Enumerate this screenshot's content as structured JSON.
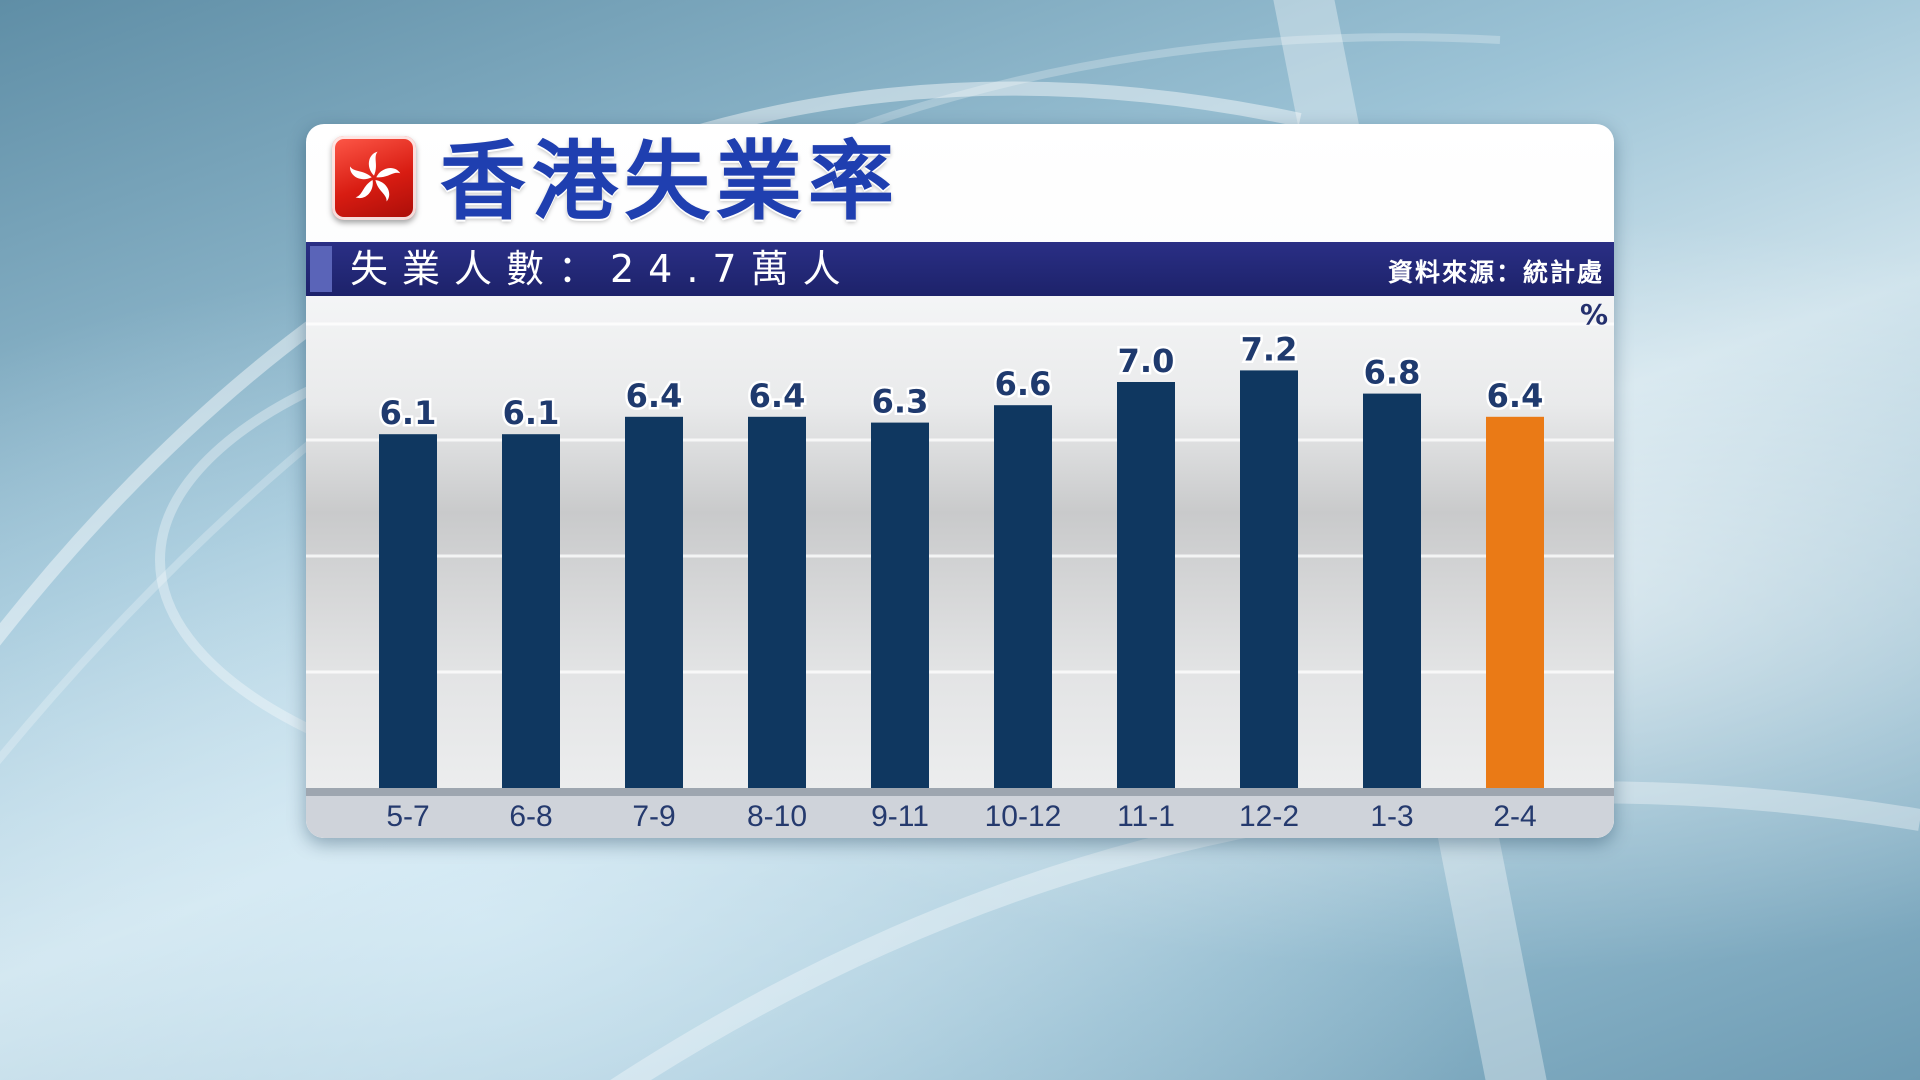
{
  "header": {
    "title": "香港失業率",
    "subtitle": "失業人數：24.7萬人",
    "source": "資料來源：統計處"
  },
  "flag_icon": "hong-kong-bauhinia-flag-icon",
  "colors": {
    "bar_primary": "#0f3760",
    "bar_highlight": "#ea7a16",
    "title_blue": "#1f3fb0",
    "info_bar": "#1d226a"
  },
  "chart_data": {
    "type": "bar",
    "unit": "%",
    "categories": [
      "5-7",
      "6-8",
      "7-9",
      "8-10",
      "9-11",
      "10-12",
      "11-1",
      "12-2",
      "1-3",
      "2-4"
    ],
    "values": [
      6.1,
      6.1,
      6.4,
      6.4,
      6.3,
      6.6,
      7.0,
      7.2,
      6.8,
      6.4
    ],
    "value_labels": [
      "6.1",
      "6.1",
      "6.4",
      "6.4",
      "6.3",
      "6.6",
      "7.0",
      "7.2",
      "6.8",
      "6.4"
    ],
    "highlighted_category": "2-4",
    "ylim": [
      0,
      8
    ],
    "grid": true,
    "legend": "none"
  }
}
